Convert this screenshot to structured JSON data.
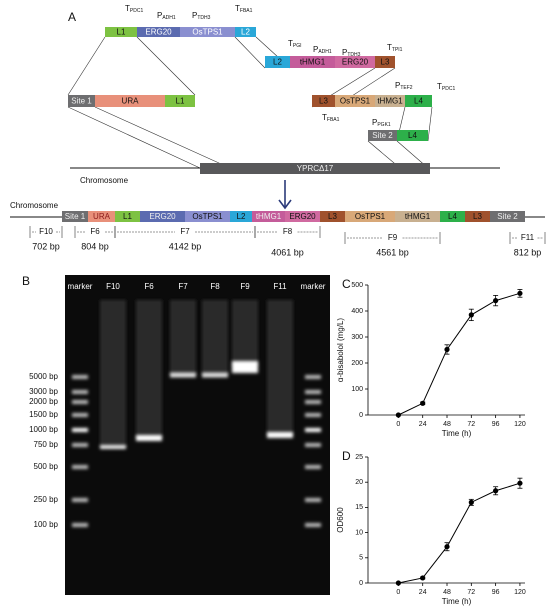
{
  "panel_a": {
    "label": "A",
    "cassette_1": {
      "parts": [
        "L1",
        "ERG20",
        "OsTPS1",
        "L2"
      ],
      "elements": [
        {
          "letter": "T",
          "sub": "PDC1"
        },
        {
          "letter": "P",
          "sub": "ADH1"
        },
        {
          "letter": "P",
          "sub": "TDH3"
        },
        {
          "letter": "T",
          "sub": "FBA1"
        }
      ]
    },
    "cassette_2": {
      "parts": [
        "L2",
        "tHMG1",
        "ERG20",
        "L3"
      ],
      "elements": [
        {
          "letter": "T",
          "sub": "PGI"
        },
        {
          "letter": "P",
          "sub": "ADH1"
        },
        {
          "letter": "P",
          "sub": "TDH3"
        },
        {
          "letter": "T",
          "sub": "TPI1"
        }
      ]
    },
    "cassette_3": {
      "parts": [
        "Site 1",
        "URA",
        "L1"
      ]
    },
    "cassette_4": {
      "parts": [
        "L3",
        "OsTPS1",
        "tHMG1",
        "L4"
      ],
      "elements": [
        {
          "letter": "P",
          "sub": "TEF2"
        },
        {
          "letter": "T",
          "sub": "PDC1"
        },
        {
          "letter": "T",
          "sub": "FBA1"
        },
        {
          "letter": "P",
          "sub": "PGK1"
        }
      ]
    },
    "cassette_5": {
      "parts": [
        "Site 2",
        "L4"
      ]
    },
    "locus": "YPRCΔ17",
    "chromosome_label": "Chromosome",
    "integrated": {
      "label": "Chromosome",
      "parts": [
        "Site 1",
        "URA",
        "L1",
        "ERG20",
        "OsTPS1",
        "L2",
        "tHMG1",
        "ERG20",
        "L3",
        "OsTPS1",
        "tHMG1",
        "L4",
        "L3",
        "Site 2"
      ]
    },
    "fragments": [
      {
        "name": "F10",
        "size": "702 bp"
      },
      {
        "name": "F6",
        "size": "804 bp"
      },
      {
        "name": "F7",
        "size": "4142 bp"
      },
      {
        "name": "F8",
        "size": "4061 bp"
      },
      {
        "name": "F9",
        "size": "4561 bp"
      },
      {
        "name": "F11",
        "size": "812 bp"
      }
    ]
  },
  "gel": {
    "label": "B",
    "lanes": [
      "marker",
      "F10",
      "F6",
      "F7",
      "F8",
      "F9",
      "F11",
      "marker"
    ],
    "ladder": [
      "5000 bp",
      "3000 bp",
      "2000 bp",
      "1500 bp",
      "1000 bp",
      "750 bp",
      "500 bp",
      "250 bp",
      "100 bp"
    ]
  },
  "chart_data": [
    {
      "type": "line",
      "panel": "C",
      "ylabel": "α-bisabolol (mg/L)",
      "xlabel": "Time (h)",
      "x": [
        0,
        24,
        48,
        72,
        96,
        120
      ],
      "series": [
        {
          "color": "#000000",
          "values": [
            0,
            45,
            252,
            385,
            440,
            468
          ],
          "errors": [
            0,
            5,
            18,
            22,
            20,
            15
          ]
        }
      ],
      "xlim": [
        -30,
        125
      ],
      "ylim": [
        0,
        500
      ],
      "xticks": [
        0,
        24,
        48,
        72,
        96,
        120
      ],
      "yticks": [
        0,
        100,
        200,
        300,
        400,
        500
      ]
    },
    {
      "type": "line",
      "panel": "D",
      "ylabel": "OD600",
      "xlabel": "Time (h)",
      "x": [
        0,
        24,
        48,
        72,
        96,
        120
      ],
      "series": [
        {
          "color": "#000000",
          "values": [
            0,
            1,
            7.2,
            16,
            18.3,
            19.8
          ],
          "errors": [
            0,
            0.2,
            0.8,
            0.6,
            0.8,
            1.0
          ]
        }
      ],
      "xlim": [
        -30,
        125
      ],
      "ylim": [
        0,
        25
      ],
      "xticks": [
        0,
        24,
        48,
        72,
        96,
        120
      ],
      "yticks": [
        0,
        5,
        10,
        15,
        20,
        25
      ]
    }
  ]
}
